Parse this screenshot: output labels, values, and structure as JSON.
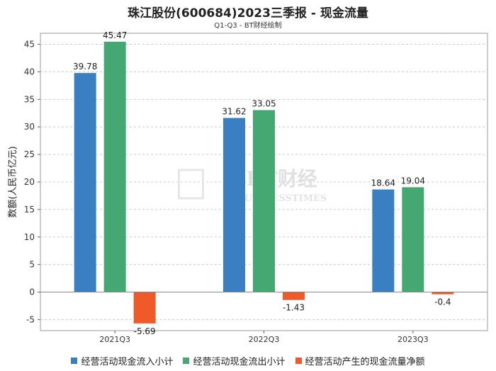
{
  "chart_data": {
    "type": "bar",
    "title": "珠江股份(600684)2023三季报 - 现金流量",
    "subtitle": "Q1-Q3 - BT财经绘制",
    "ylabel": "数额(人民币亿元)",
    "xlabel": "",
    "ylim": [
      -7,
      47
    ],
    "yticks": [
      -5,
      0,
      5,
      10,
      15,
      20,
      25,
      30,
      35,
      40,
      45
    ],
    "grid": true,
    "legend_position": "bottom",
    "categories": [
      "2021Q3",
      "2022Q3",
      "2023Q3"
    ],
    "series": [
      {
        "name": "经营活动现金流入小计",
        "color": "#3a7fc1",
        "values": [
          39.78,
          31.62,
          18.64
        ]
      },
      {
        "name": "经营活动现金流出小计",
        "color": "#45a873",
        "values": [
          45.47,
          33.05,
          19.04
        ]
      },
      {
        "name": "经营活动产生的现金流量净额",
        "color": "#f05a28",
        "values": [
          -5.69,
          -1.43,
          -0.4
        ]
      }
    ],
    "watermark": {
      "main": "BT财经",
      "sub": "BUSINESSTIMES"
    }
  }
}
